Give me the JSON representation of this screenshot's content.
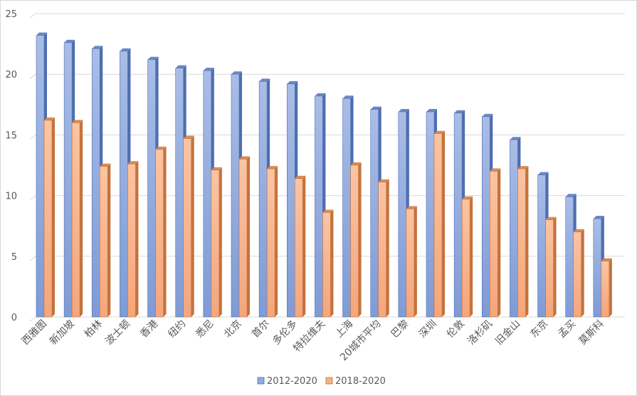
{
  "chart_data": {
    "type": "bar",
    "style": "3d-clustered-column",
    "title": "",
    "xlabel": "",
    "ylabel": "",
    "ylim": [
      0,
      25
    ],
    "yticks": [
      0,
      5,
      10,
      15,
      20,
      25
    ],
    "grid": true,
    "legend_position": "bottom",
    "categories": [
      "西雅图",
      "新加坡",
      "柏林",
      "波士顿",
      "香港",
      "纽约",
      "悉尼",
      "北京",
      "首尔",
      "多伦多",
      "特拉维夫",
      "上海",
      "20城市平均",
      "巴黎",
      "深圳",
      "伦敦",
      "洛杉矶",
      "旧金山",
      "东京",
      "孟买",
      "莫斯科"
    ],
    "series": [
      {
        "name": "2012-2020",
        "color": "#8faadc",
        "values": [
          23.2,
          22.6,
          22.1,
          21.9,
          21.2,
          20.5,
          20.3,
          20.0,
          19.4,
          19.2,
          18.2,
          18.0,
          17.1,
          16.9,
          16.9,
          16.8,
          16.5,
          14.6,
          11.7,
          9.9,
          8.1
        ]
      },
      {
        "name": "2018-2020",
        "color": "#f4b183",
        "values": [
          16.2,
          16.0,
          12.4,
          12.6,
          13.8,
          14.7,
          12.1,
          13.0,
          12.2,
          11.4,
          8.6,
          12.5,
          11.1,
          8.9,
          15.1,
          9.7,
          12.0,
          12.2,
          8.0,
          7.0,
          4.6
        ]
      }
    ]
  }
}
